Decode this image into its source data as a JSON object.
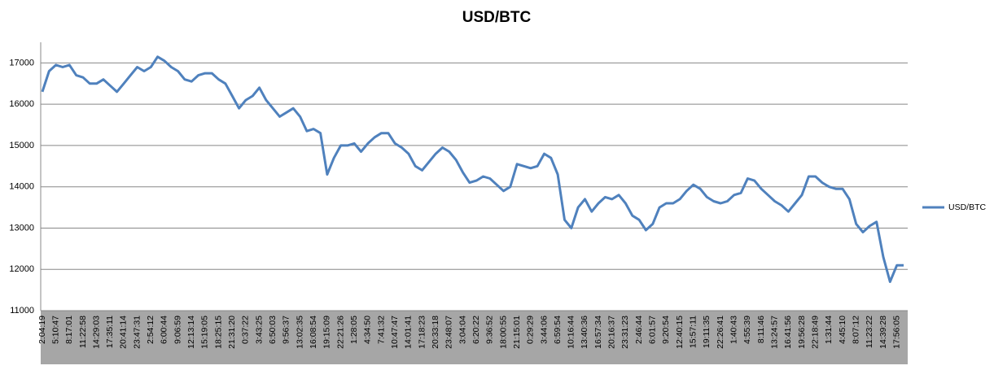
{
  "chart_data": {
    "type": "line",
    "title": "USD/BTC",
    "categories": [
      "2:04:19",
      null,
      "5:10:47",
      null,
      "8:17:01",
      null,
      "11:22:58",
      null,
      "14:29:03",
      null,
      "17:35:11",
      null,
      "20:41:14",
      null,
      "23:47:31",
      null,
      "2:54:12",
      null,
      "6:00:44",
      null,
      "9:06:59",
      null,
      "12:13:14",
      null,
      "15:19:05",
      null,
      "18:25:15",
      null,
      "21:31:20",
      null,
      "0:37:22",
      null,
      "3:43:25",
      null,
      "6:50:03",
      null,
      "9:56:37",
      null,
      "13:02:35",
      null,
      "16:08:54",
      null,
      "19:15:09",
      null,
      "22:21:26",
      null,
      "1:28:05",
      null,
      "4:34:50",
      null,
      "7:41:32",
      null,
      "10:47:47",
      null,
      "14:01:41",
      null,
      "17:18:23",
      null,
      "20:33:18",
      null,
      "23:48:07",
      null,
      "3:04:04",
      null,
      "6:20:22",
      null,
      "9:36:52",
      null,
      "18:00:55",
      null,
      "21:15:01",
      null,
      "0:29:29",
      null,
      "3:44:06",
      null,
      "6:59:54",
      null,
      "10:16:44",
      null,
      "13:40:36",
      null,
      "16:57:34",
      null,
      "20:16:37",
      null,
      "23:31:23",
      null,
      "2:46:44",
      null,
      "6:01:57",
      null,
      "9:20:54",
      null,
      "12:40:15",
      null,
      "15:57:11",
      null,
      "19:11:35",
      null,
      "22:26:41",
      null,
      "1:40:43",
      null,
      "4:55:39",
      null,
      "8:11:46",
      null,
      "13:24:57",
      null,
      "16:41:56",
      null,
      "19:56:28",
      null,
      "22:18:49",
      null,
      "1:31:44",
      null,
      "4:45:10",
      null,
      "8:07:12",
      null,
      "11:23:22",
      null,
      "14:39:28",
      null,
      "17:56:05",
      null
    ],
    "series": [
      {
        "name": "USD/BTC",
        "color": "#4f81bd",
        "values": [
          16300,
          16800,
          16950,
          16900,
          16950,
          16700,
          16650,
          16500,
          16500,
          16600,
          16450,
          16300,
          16500,
          16700,
          16900,
          16800,
          16900,
          17150,
          17050,
          16900,
          16800,
          16600,
          16550,
          16700,
          16750,
          16750,
          16600,
          16500,
          16200,
          15900,
          16100,
          16200,
          16400,
          16100,
          15900,
          15700,
          15800,
          15900,
          15700,
          15350,
          15400,
          15300,
          14300,
          14700,
          15000,
          15000,
          15050,
          14850,
          15050,
          15200,
          15300,
          15300,
          15050,
          14950,
          14800,
          14500,
          14400,
          14600,
          14800,
          14950,
          14850,
          14650,
          14350,
          14100,
          14150,
          14250,
          14200,
          14050,
          13900,
          14000,
          14550,
          14500,
          14450,
          14500,
          14800,
          14700,
          14300,
          13200,
          13000,
          13500,
          13700,
          13400,
          13600,
          13750,
          13700,
          13800,
          13600,
          13300,
          13200,
          12950,
          13100,
          13500,
          13600,
          13600,
          13700,
          13900,
          14050,
          13950,
          13750,
          13650,
          13600,
          13650,
          13800,
          13850,
          14200,
          14150,
          13950,
          13800,
          13650,
          13550,
          13400,
          13600,
          13800,
          14250,
          14250,
          14100,
          14000,
          13950,
          13950,
          13700,
          13100,
          12900,
          13050,
          13150,
          12300,
          11700,
          12100,
          12100
        ]
      }
    ],
    "ylim": [
      11000,
      17500
    ],
    "yticks": [
      11000,
      12000,
      13000,
      14000,
      15000,
      16000,
      17000
    ],
    "grid": true,
    "legend": "right"
  }
}
